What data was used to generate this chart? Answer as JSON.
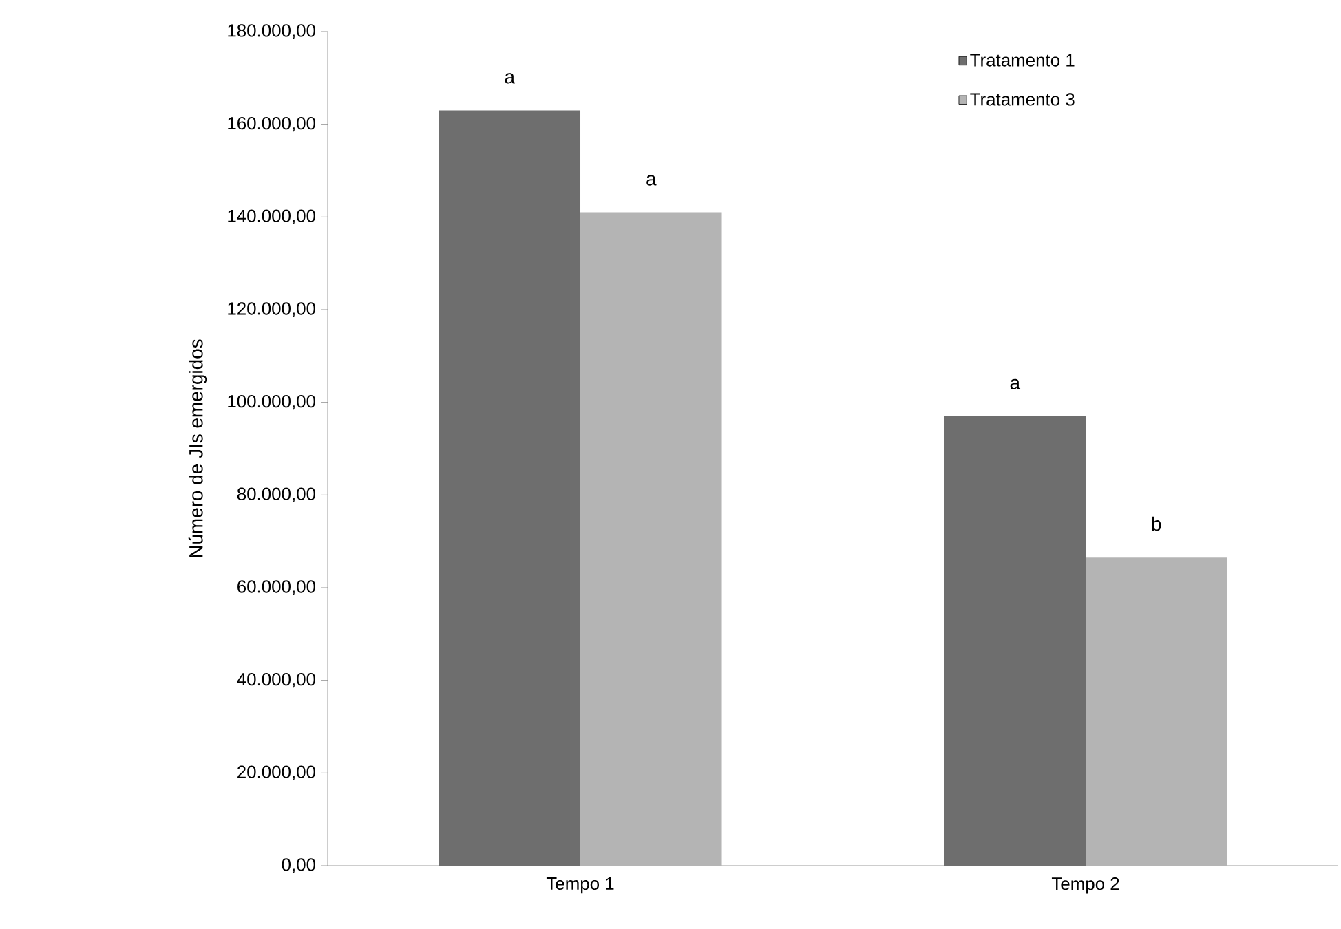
{
  "chart_data": {
    "type": "bar",
    "ylabel": "Número de JIs emergidos",
    "categories": [
      "Tempo 1",
      "Tempo 2"
    ],
    "series": [
      {
        "name": "Tratamento 1",
        "color": "#6e6e6e",
        "values": [
          163000,
          97000
        ]
      },
      {
        "name": "Tratamento 3",
        "color": "#b4b4b4",
        "values": [
          141000,
          66500
        ]
      }
    ],
    "ylim": [
      0,
      180000
    ],
    "yticks": [
      {
        "value": 0,
        "label": "0,00"
      },
      {
        "value": 20000,
        "label": "20.000,00"
      },
      {
        "value": 40000,
        "label": "40.000,00"
      },
      {
        "value": 60000,
        "label": "60.000,00"
      },
      {
        "value": 80000,
        "label": "80.000,00"
      },
      {
        "value": 100000,
        "label": "100.000,00"
      },
      {
        "value": 120000,
        "label": "120.000,00"
      },
      {
        "value": 140000,
        "label": "140.000,00"
      },
      {
        "value": 160000,
        "label": "160.000,00"
      },
      {
        "value": 180000,
        "label": "180.000,00"
      }
    ],
    "annotations": [
      "a",
      "a",
      "a",
      "b"
    ],
    "legend": "top right",
    "grid": false
  }
}
